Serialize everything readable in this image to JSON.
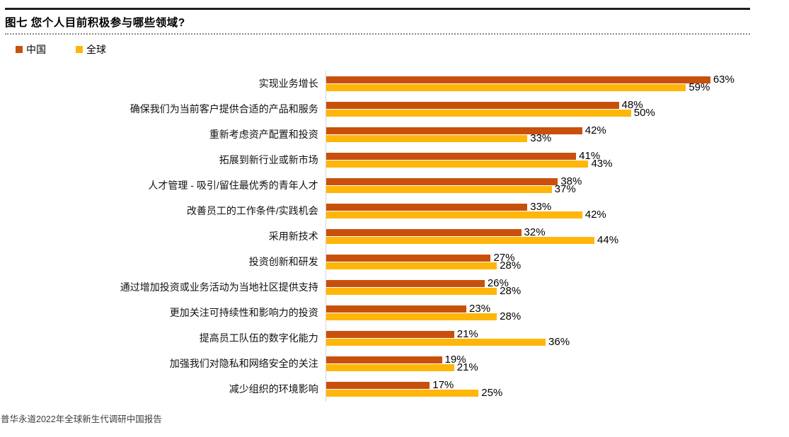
{
  "header": {
    "title": "图七 您个人目前积极参与哪些领域?"
  },
  "legend": [
    {
      "label": "中国",
      "color": "#C9500C"
    },
    {
      "label": "全球",
      "color": "#FFB60A"
    }
  ],
  "footer": {
    "source": "普华永道2022年全球新生代调研中国报告"
  },
  "chart_data": {
    "type": "bar",
    "orientation": "horizontal",
    "title": "图七 您个人目前积极参与哪些领域?",
    "unit": "%",
    "xlim": [
      0,
      70
    ],
    "grid": false,
    "legend_position": "top-left",
    "value_labels": true,
    "categories": [
      "实现业务增长",
      "确保我们为当前客户提供合适的产品和服务",
      "重新考虑资产配置和投资",
      "拓展到新行业或新市场",
      "人才管理 - 吸引/留住最优秀的青年人才",
      "改善员工的工作条件/实践机会",
      "采用新技术",
      "投资创新和研发",
      "通过增加投资或业务活动为当地社区提供支持",
      "更加关注可持续性和影响力的投资",
      "提高员工队伍的数字化能力",
      "加强我们对隐私和网络安全的关注",
      "减少组织的环境影响"
    ],
    "series": [
      {
        "name": "中国",
        "color": "#C9500C",
        "values": [
          63,
          48,
          42,
          41,
          38,
          33,
          32,
          27,
          26,
          23,
          21,
          19,
          17
        ]
      },
      {
        "name": "全球",
        "color": "#FFB60A",
        "values": [
          59,
          50,
          33,
          43,
          37,
          42,
          44,
          28,
          28,
          28,
          36,
          21,
          25
        ]
      }
    ]
  }
}
